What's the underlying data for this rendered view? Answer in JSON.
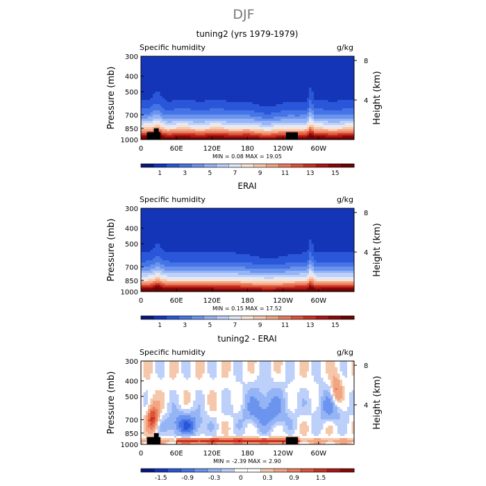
{
  "figure": {
    "title": "DJF",
    "panels": [
      {
        "id": "model",
        "title": "tuning2 (yrs 1979-1979)",
        "left_label": "Specific humidity",
        "right_label": "g/kg",
        "stats": "MIN =    0.08   MAX =   19.05"
      },
      {
        "id": "obs",
        "title": "ERAI",
        "left_label": "Specific humidity",
        "right_label": "g/kg",
        "stats": "MIN =    0.15   MAX =   17.52"
      },
      {
        "id": "diff",
        "title": "tuning2 - ERAI",
        "left_label": "Specific humidity",
        "right_label": "g/kg",
        "stats": "MIN =   -2.39   MAX =    2.90"
      }
    ]
  },
  "chart_data": [
    {
      "type": "heatmap",
      "title": "tuning2 (yrs 1979-1979)",
      "subtitle": "Specific humidity",
      "units": "g/kg",
      "xlabel": "",
      "ylabel": "Pressure (mb)",
      "y2label": "Height (km)",
      "x_ticks": [
        "0",
        "60E",
        "120E",
        "180",
        "120W",
        "60W"
      ],
      "x_tick_values": [
        0,
        60,
        120,
        180,
        240,
        300
      ],
      "xlim": [
        0,
        360
      ],
      "y_ticks": [
        "300",
        "400",
        "500",
        "700",
        "850",
        "1000"
      ],
      "y_tick_values": [
        300,
        400,
        500,
        700,
        850,
        1000
      ],
      "ylim": [
        1000,
        300
      ],
      "y2_ticks": [
        "8",
        "4"
      ],
      "y2_tick_values": [
        8,
        4
      ],
      "colorbar_labels": [
        "1",
        "3",
        "5",
        "7",
        "9",
        "11",
        "13",
        "15"
      ],
      "colorbar_levels": [
        0,
        1,
        2,
        3,
        4,
        5,
        6,
        7,
        8,
        9,
        10,
        11,
        12,
        13,
        14,
        15,
        16
      ],
      "colormap": [
        "#08197d",
        "#1435b8",
        "#2a57d9",
        "#4574e6",
        "#6b94ef",
        "#95b4f5",
        "#bdd0f9",
        "#e2e9fa",
        "#f8e4d5",
        "#f6c8ab",
        "#f2a582",
        "#ea7c5b",
        "#dd5339",
        "#c9301f",
        "#ad1414",
        "#8a0808",
        "#6b0404"
      ],
      "min": 0.08,
      "max": 19.05,
      "topography": [
        [
          10,
          1000,
          850
        ],
        [
          33,
          1000,
          850
        ],
        [
          0,
          0,
          0
        ]
      ],
      "masks": [
        [
          10,
          33
        ],
        [
          245,
          265
        ]
      ]
    },
    {
      "type": "heatmap",
      "title": "ERAI",
      "subtitle": "Specific humidity",
      "units": "g/kg",
      "xlabel": "",
      "ylabel": "Pressure (mb)",
      "y2label": "Height (km)",
      "x_ticks": [
        "0",
        "60E",
        "120E",
        "180",
        "120W",
        "60W"
      ],
      "x_tick_values": [
        0,
        60,
        120,
        180,
        240,
        300
      ],
      "xlim": [
        0,
        360
      ],
      "y_ticks": [
        "300",
        "400",
        "500",
        "700",
        "850",
        "1000"
      ],
      "y_tick_values": [
        300,
        400,
        500,
        700,
        850,
        1000
      ],
      "ylim": [
        1000,
        300
      ],
      "y2_ticks": [
        "8",
        "4"
      ],
      "y2_tick_values": [
        8,
        4
      ],
      "colorbar_labels": [
        "1",
        "3",
        "5",
        "7",
        "9",
        "11",
        "13",
        "15"
      ],
      "colorbar_levels": [
        0,
        1,
        2,
        3,
        4,
        5,
        6,
        7,
        8,
        9,
        10,
        11,
        12,
        13,
        14,
        15,
        16
      ],
      "colormap": [
        "#08197d",
        "#1435b8",
        "#2a57d9",
        "#4574e6",
        "#6b94ef",
        "#95b4f5",
        "#bdd0f9",
        "#e2e9fa",
        "#f8e4d5",
        "#f6c8ab",
        "#f2a582",
        "#ea7c5b",
        "#dd5339",
        "#c9301f",
        "#ad1414",
        "#8a0808",
        "#6b0404"
      ],
      "min": 0.15,
      "max": 17.52,
      "masks": []
    },
    {
      "type": "heatmap",
      "title": "tuning2 - ERAI",
      "subtitle": "Specific humidity",
      "units": "g/kg",
      "xlabel": "",
      "ylabel": "Pressure (mb)",
      "y2label": "Height (km)",
      "x_ticks": [
        "0",
        "60E",
        "120E",
        "180",
        "120W",
        "60W"
      ],
      "x_tick_values": [
        0,
        60,
        120,
        180,
        240,
        300
      ],
      "xlim": [
        0,
        360
      ],
      "y_ticks": [
        "300",
        "400",
        "500",
        "700",
        "850",
        "1000"
      ],
      "y_tick_values": [
        300,
        400,
        500,
        700,
        850,
        1000
      ],
      "ylim": [
        1000,
        300
      ],
      "y2_ticks": [
        "8",
        "4"
      ],
      "y2_tick_values": [
        8,
        4
      ],
      "colorbar_labels": [
        "-1.5",
        "-0.9",
        "-0.3",
        "0",
        "0.3",
        "0.9",
        "1.5"
      ],
      "colorbar_levels": [
        -1.8,
        -1.5,
        -1.2,
        -0.9,
        -0.6,
        -0.3,
        -0.1,
        0,
        0.1,
        0.3,
        0.6,
        0.9,
        1.2,
        1.5,
        1.8
      ],
      "colormap": [
        "#08197d",
        "#1435b8",
        "#2a57d9",
        "#4574e6",
        "#6b94ef",
        "#95b4f5",
        "#bdd0f9",
        "#ffffff",
        "#ffffff",
        "#f6c8ab",
        "#f2a582",
        "#ea7c5b",
        "#dd5339",
        "#c9301f",
        "#ad1414",
        "#8a0808"
      ],
      "min": -2.39,
      "max": 2.9,
      "masks": [
        [
          10,
          33
        ],
        [
          245,
          265
        ]
      ]
    }
  ]
}
